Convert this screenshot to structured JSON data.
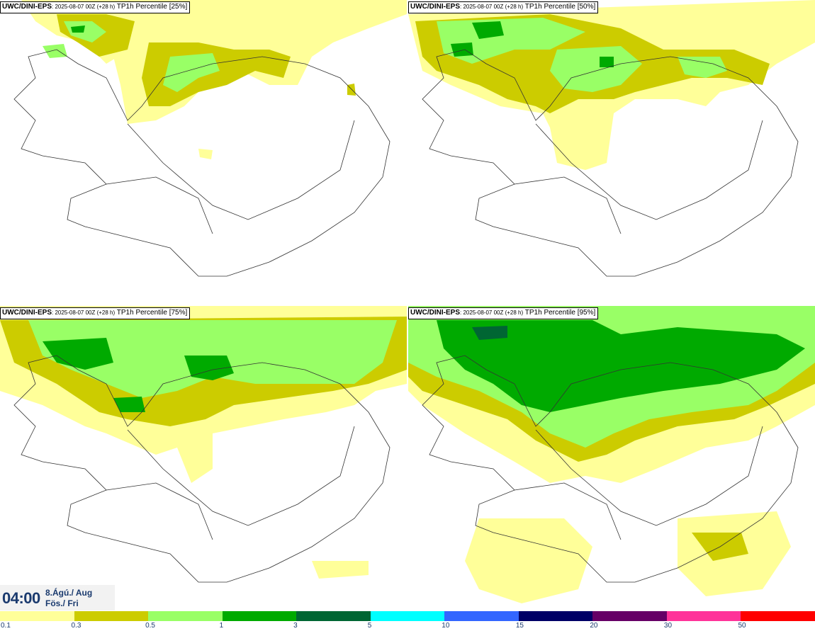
{
  "panels": [
    {
      "model": "UWC/DINI-EPS",
      "run": ": 2025-08-07 00Z (+28 h)",
      "field": " TP1h Percentile [25%]"
    },
    {
      "model": "UWC/DINI-EPS",
      "run": ": 2025-08-07 00Z (+28 h)",
      "field": " TP1h Percentile [50%]"
    },
    {
      "model": "UWC/DINI-EPS",
      "run": ": 2025-08-07 00Z (+28 h)",
      "field": " TP1h Percentile [75%]"
    },
    {
      "model": "UWC/DINI-EPS",
      "run": ": 2025-08-07 00Z (+28 h)",
      "field": " TP1h Percentile [95%]"
    }
  ],
  "valid_time": {
    "time": "04:00",
    "date": "8.Ágú./ Aug",
    "day": "Fös./ Fri"
  },
  "legend": {
    "colors": [
      "#ffff99",
      "#cccc00",
      "#99ff66",
      "#00aa00",
      "#006633",
      "#00ffff",
      "#3366ff",
      "#000066",
      "#660066",
      "#ff3399",
      "#ff0000"
    ],
    "labels": [
      "0.1",
      "0.3",
      "0.5",
      "1",
      "3",
      "5",
      "10",
      "15",
      "20",
      "30",
      "50"
    ]
  }
}
